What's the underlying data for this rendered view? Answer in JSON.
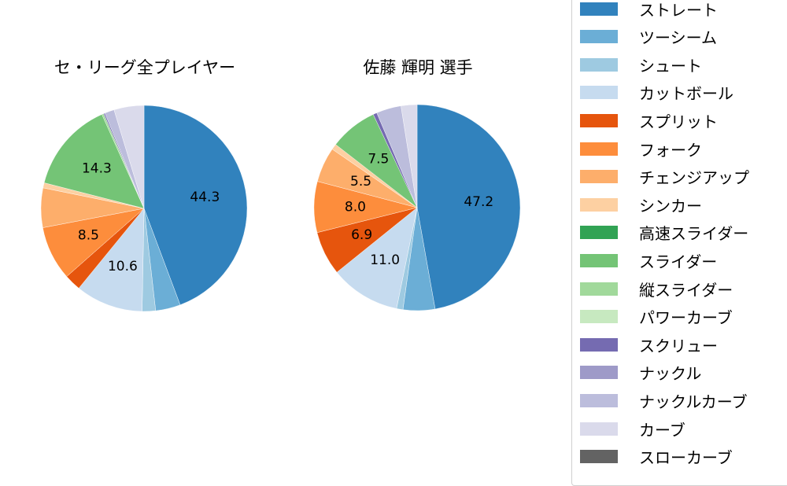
{
  "chart_data": [
    {
      "type": "pie",
      "title": "セ・リーグ全プレイヤー",
      "start_angle": 90,
      "direction": "clockwise",
      "categories": [
        "ストレート",
        "ツーシーム",
        "シュート",
        "カットボール",
        "スプリット",
        "フォーク",
        "チェンジアップ",
        "シンカー",
        "スライダー",
        "縦スライダー",
        "スクリュー",
        "ナックルカーブ",
        "カーブ"
      ],
      "values": [
        44.3,
        3.9,
        2.1,
        10.6,
        2.6,
        8.5,
        6.2,
        0.8,
        14.3,
        0.3,
        0.2,
        1.5,
        4.7
      ],
      "labels_shown": {
        "ストレート": "44.3",
        "カットボール": "10.6",
        "フォーク": "8.5",
        "スライダー": "14.3"
      }
    },
    {
      "type": "pie",
      "title": "佐藤 輝明  選手",
      "start_angle": 90,
      "direction": "clockwise",
      "categories": [
        "ストレート",
        "ツーシーム",
        "シュート",
        "カットボール",
        "スプリット",
        "フォーク",
        "チェンジアップ",
        "シンカー",
        "スライダー",
        "スクリュー",
        "ナックルカーブ",
        "カーブ"
      ],
      "values": [
        47.2,
        5.0,
        1.0,
        11.0,
        6.9,
        8.0,
        5.5,
        0.9,
        7.5,
        0.6,
        3.9,
        2.5
      ],
      "labels_shown": {
        "ストレート": "47.2",
        "カットボール": "11.0",
        "スプリット": "6.9",
        "フォーク": "8.0",
        "チェンジアップ": "5.5",
        "スライダー": "7.5"
      }
    }
  ],
  "titles": {
    "left": "セ・リーグ全プレイヤー",
    "right": "佐藤 輝明  選手"
  },
  "legend": [
    {
      "label": "ストレート",
      "color": "#3182bd"
    },
    {
      "label": "ツーシーム",
      "color": "#6baed6"
    },
    {
      "label": "シュート",
      "color": "#9ecae1"
    },
    {
      "label": "カットボール",
      "color": "#c6dbef"
    },
    {
      "label": "スプリット",
      "color": "#e6550d"
    },
    {
      "label": "フォーク",
      "color": "#fd8d3c"
    },
    {
      "label": "チェンジアップ",
      "color": "#fdae6b"
    },
    {
      "label": "シンカー",
      "color": "#fdd0a2"
    },
    {
      "label": "高速スライダー",
      "color": "#31a354"
    },
    {
      "label": "スライダー",
      "color": "#74c476"
    },
    {
      "label": "縦スライダー",
      "color": "#a1d99b"
    },
    {
      "label": "パワーカーブ",
      "color": "#c7e9c0"
    },
    {
      "label": "スクリュー",
      "color": "#756bb1"
    },
    {
      "label": "ナックル",
      "color": "#9e9ac8"
    },
    {
      "label": "ナックルカーブ",
      "color": "#bcbddc"
    },
    {
      "label": "カーブ",
      "color": "#dadaeb"
    },
    {
      "label": "スローカーブ",
      "color": "#636363"
    }
  ]
}
